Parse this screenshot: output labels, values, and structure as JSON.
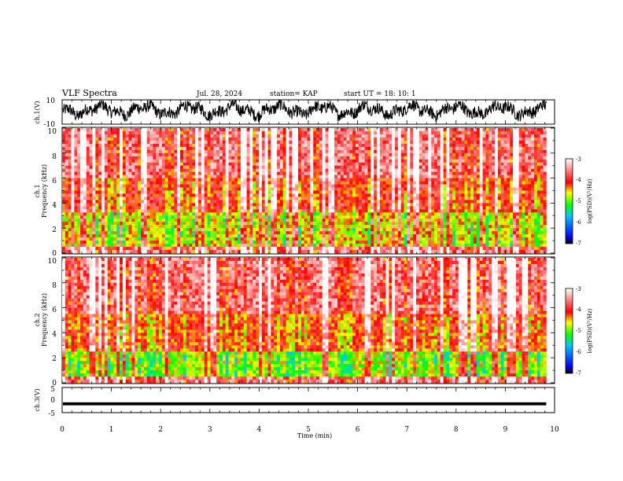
{
  "header": {
    "title": "VLF Spectra",
    "date": "Jul. 28, 2024",
    "station": "station= KAP",
    "start": "start UT = 18: 10: 1"
  },
  "chart_data": {
    "type": "heatmap",
    "x_axis": {
      "label": "Time (min)",
      "range": [
        0,
        10
      ],
      "ticks": [
        "0",
        "1",
        "2",
        "3",
        "4",
        "5",
        "6",
        "7",
        "8",
        "9",
        "10"
      ],
      "data_end_min": 9.83
    },
    "panels": [
      {
        "id": "ch1-waveform",
        "type": "line",
        "ylabel": "ch.1(V)",
        "yrange": [
          -10,
          10
        ],
        "yticks": [
          "10",
          "-10"
        ],
        "trace_color": "#000000",
        "trace_description_level": "noisy waveform oscillating mostly between -5 and +8 V"
      },
      {
        "id": "ch1-spectrogram",
        "type": "heatmap",
        "ylabel": "ch.1\nFrequency (kHz)",
        "yrange": [
          0,
          10
        ],
        "yticks": [
          "0",
          "2",
          "4",
          "6",
          "8",
          "10"
        ],
        "colorbar": {
          "label": "log(PSD)(V²/Hz)",
          "range": [
            -7,
            -3
          ],
          "ticks": [
            "-3",
            "-4",
            "-5",
            "-6",
            "-7"
          ]
        },
        "typical_log_psd_by_band": [
          {
            "band_khz": [
              0,
              0.5
            ],
            "log_psd": -3.6
          },
          {
            "band_khz": [
              0.5,
              3.2
            ],
            "log_psd": -4.6
          },
          {
            "band_khz": [
              3.2,
              6
            ],
            "log_psd": -4.0
          },
          {
            "band_khz": [
              6,
              10
            ],
            "log_psd": -3.6
          }
        ]
      },
      {
        "id": "ch2-spectrogram",
        "type": "heatmap",
        "ylabel": "ch.2\nFrequency (kHz)",
        "yrange": [
          0,
          10
        ],
        "yticks": [
          "0",
          "2",
          "4",
          "6",
          "8",
          "10"
        ],
        "colorbar": {
          "label": "log(PSD)(V²/Hz)",
          "range": [
            -7,
            -3
          ],
          "ticks": [
            "-3",
            "-4",
            "-5",
            "-6",
            "-7"
          ]
        },
        "typical_log_psd_by_band": [
          {
            "band_khz": [
              0,
              0.4
            ],
            "log_psd": -3.6
          },
          {
            "band_khz": [
              0.4,
              2.5
            ],
            "log_psd": -4.8
          },
          {
            "band_khz": [
              2.5,
              5.5
            ],
            "log_psd": -4.1
          },
          {
            "band_khz": [
              5.5,
              10
            ],
            "log_psd": -3.6
          }
        ]
      },
      {
        "id": "ch3-waveform",
        "type": "line",
        "ylabel": "ch.3(V)",
        "yrange": [
          -5,
          5
        ],
        "yticks": [
          "5",
          "0",
          "-5"
        ],
        "trace_color": "#000000",
        "trace_center_v": -1.5,
        "trace_amplitude_v": 0.6
      }
    ],
    "colormap": [
      "#000000",
      "#0000ff",
      "#00c8ff",
      "#00ff00",
      "#ffff00",
      "#ff0000",
      "#ffffff"
    ],
    "grid": false,
    "legend": "colorbars right of each spectrogram"
  }
}
